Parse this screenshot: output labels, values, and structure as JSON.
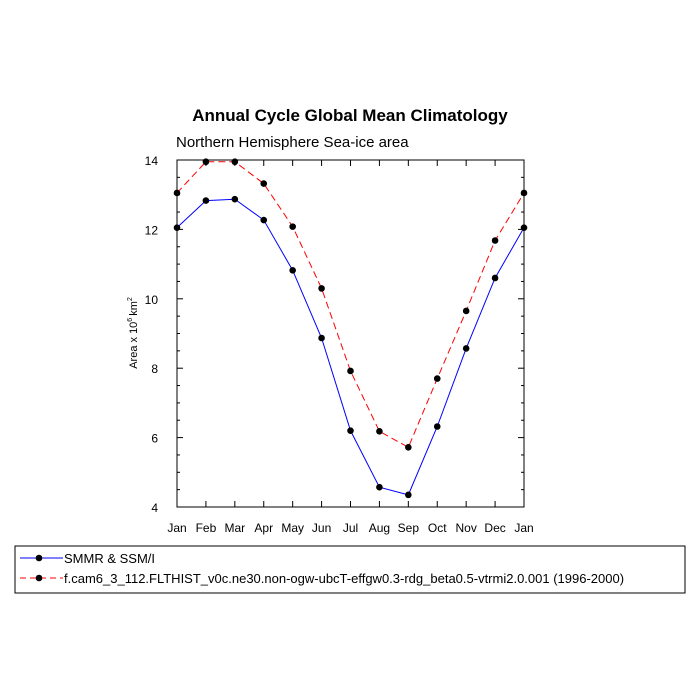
{
  "chart_data": {
    "type": "line",
    "title": "Annual Cycle Global Mean Climatology",
    "subtitle": "Northern Hemisphere Sea-ice area",
    "ylabel": "Area x 10",
    "ylabel_sup": "6",
    "ylabel_unit": "km",
    "ylabel_unit_sup": "2",
    "xlabel": "",
    "categories": [
      "Jan",
      "Feb",
      "Mar",
      "Apr",
      "May",
      "Jun",
      "Jul",
      "Aug",
      "Sep",
      "Oct",
      "Nov",
      "Dec",
      "Jan"
    ],
    "ylim": [
      4,
      14
    ],
    "yticks": [
      4,
      6,
      8,
      10,
      12,
      14
    ],
    "series": [
      {
        "name": "SMMR & SSM/I",
        "color": "#0000ff",
        "dash": "solid",
        "values": [
          12.05,
          12.83,
          12.87,
          12.27,
          10.82,
          8.87,
          6.2,
          4.57,
          4.35,
          6.32,
          8.57,
          10.6,
          12.05
        ]
      },
      {
        "name": "f.cam6_3_112.FLTHIST_v0c.ne30.non-ogw-ubcT-effgw0.3-rdg_beta0.5-vtrmi2.0.001 (1996-2000)",
        "color": "#ff0000",
        "dash": "dashed",
        "values": [
          13.05,
          13.95,
          13.95,
          13.32,
          12.08,
          10.3,
          7.92,
          6.18,
          5.72,
          7.7,
          9.65,
          11.68,
          13.05
        ]
      }
    ]
  }
}
